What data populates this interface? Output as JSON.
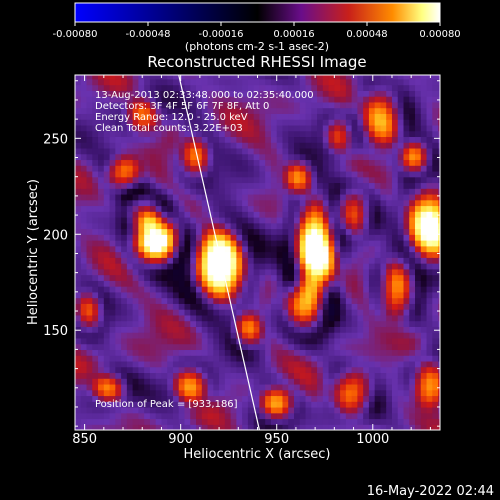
{
  "chart_data": {
    "type": "heatmap",
    "title": "Reconstructed RHESSI Image",
    "xlabel": "Heliocentric X (arcsec)",
    "ylabel": "Heliocentric Y (arcsec)",
    "xlim": [
      845,
      1035
    ],
    "ylim": [
      98,
      283
    ],
    "x_ticks": [
      850,
      900,
      950,
      1000
    ],
    "y_ticks": [
      150,
      200,
      250
    ],
    "x_tick_labels": [
      "850",
      "900",
      "950",
      "1000"
    ],
    "y_tick_labels": [
      "150",
      "200",
      "250"
    ],
    "colorbar": {
      "range": [
        -0.0008,
        0.0008
      ],
      "ticks": [
        -0.0008,
        -0.00048,
        -0.00016,
        0.00016,
        0.00048,
        0.0008
      ],
      "tick_labels": [
        "-0.00080",
        "-0.00048",
        "-0.00016",
        "0.00016",
        "0.00048",
        "0.00080"
      ],
      "unit_label": "(photons cm-2 s-1 asec-2)",
      "colors": [
        "#0000ff",
        "#000000",
        "#6a0d8a",
        "#c8201a",
        "#ff8c00",
        "#ffff80",
        "#ffffff"
      ]
    },
    "annotations": [
      "13-Aug-2013 02:33:48.000 to 02:35:40.000",
      "Detectors: 3F 4F 5F 6F 7F 8F, Att 0",
      "Energy Range: 12.0 - 25.0 keV",
      "Clean     Total counts: 3.22E+03"
    ],
    "peak_label": "Position of Peak = [933,186]",
    "peak": [
      933,
      186
    ],
    "limb_line": [
      [
        899,
        283
      ],
      [
        941,
        98
      ]
    ],
    "hot_spots": [
      {
        "x": 920,
        "y": 184,
        "sx": 9,
        "sy": 12,
        "a": 0.00085
      },
      {
        "x": 887,
        "y": 198,
        "sx": 8,
        "sy": 9,
        "a": 0.00075
      },
      {
        "x": 881,
        "y": 212,
        "sx": 6,
        "sy": 6,
        "a": 0.0004
      },
      {
        "x": 970,
        "y": 192,
        "sx": 7,
        "sy": 16,
        "a": 0.0008
      },
      {
        "x": 965,
        "y": 163,
        "sx": 7,
        "sy": 9,
        "a": 0.00055
      },
      {
        "x": 1030,
        "y": 206,
        "sx": 8,
        "sy": 14,
        "a": 0.0006
      },
      {
        "x": 1013,
        "y": 172,
        "sx": 6,
        "sy": 10,
        "a": 0.0005
      },
      {
        "x": 990,
        "y": 212,
        "sx": 6,
        "sy": 8,
        "a": 0.0004
      },
      {
        "x": 1005,
        "y": 262,
        "sx": 7,
        "sy": 10,
        "a": 0.00045
      },
      {
        "x": 982,
        "y": 252,
        "sx": 5,
        "sy": 6,
        "a": 0.0003
      },
      {
        "x": 870,
        "y": 232,
        "sx": 6,
        "sy": 6,
        "a": 0.00035
      },
      {
        "x": 908,
        "y": 240,
        "sx": 5,
        "sy": 7,
        "a": 0.0003
      },
      {
        "x": 962,
        "y": 230,
        "sx": 5,
        "sy": 6,
        "a": 0.0003
      },
      {
        "x": 990,
        "y": 118,
        "sx": 7,
        "sy": 8,
        "a": 0.00045
      },
      {
        "x": 950,
        "y": 112,
        "sx": 6,
        "sy": 6,
        "a": 0.0004
      },
      {
        "x": 905,
        "y": 122,
        "sx": 6,
        "sy": 6,
        "a": 0.00035
      },
      {
        "x": 852,
        "y": 160,
        "sx": 5,
        "sy": 7,
        "a": 0.00035
      },
      {
        "x": 1030,
        "y": 122,
        "sx": 6,
        "sy": 8,
        "a": 0.0004
      },
      {
        "x": 935,
        "y": 150,
        "sx": 5,
        "sy": 6,
        "a": 0.0003
      },
      {
        "x": 880,
        "y": 262,
        "sx": 6,
        "sy": 6,
        "a": 0.0003
      },
      {
        "x": 1022,
        "y": 240,
        "sx": 5,
        "sy": 6,
        "a": 0.00035
      },
      {
        "x": 863,
        "y": 120,
        "sx": 6,
        "sy": 5,
        "a": 0.0003
      }
    ]
  },
  "footer_timestamp": "16-May-2022 02:44"
}
